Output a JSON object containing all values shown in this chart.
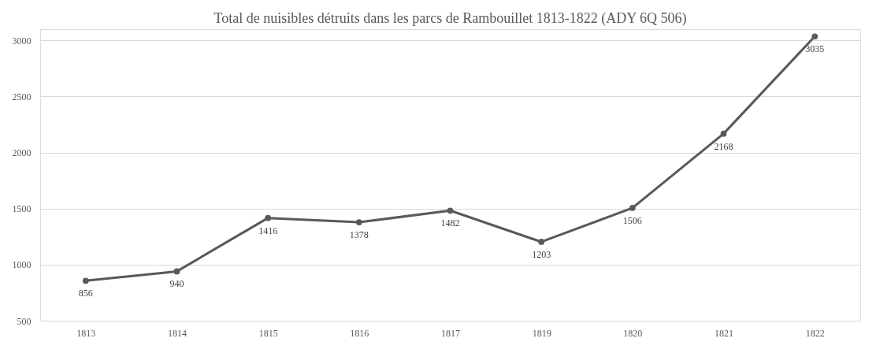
{
  "chart_data": {
    "type": "line",
    "title": "Total de nuisibles détruits dans les parcs de Rambouillet 1813-1822 (ADY 6Q 506)",
    "categories": [
      "1813",
      "1814",
      "1815",
      "1816",
      "1817",
      "1819",
      "1820",
      "1821",
      "1822"
    ],
    "series": [
      {
        "color": "#595959",
        "values": [
          856,
          940,
          1416,
          1378,
          1482,
          1203,
          1506,
          2168,
          3035
        ]
      }
    ],
    "ylim": [
      500,
      3100
    ],
    "yticks": [
      500,
      1000,
      1500,
      2000,
      2500,
      3000
    ],
    "grid": "y",
    "legend": false,
    "marker": "circle",
    "line_style": "solid",
    "data_labels": true
  }
}
